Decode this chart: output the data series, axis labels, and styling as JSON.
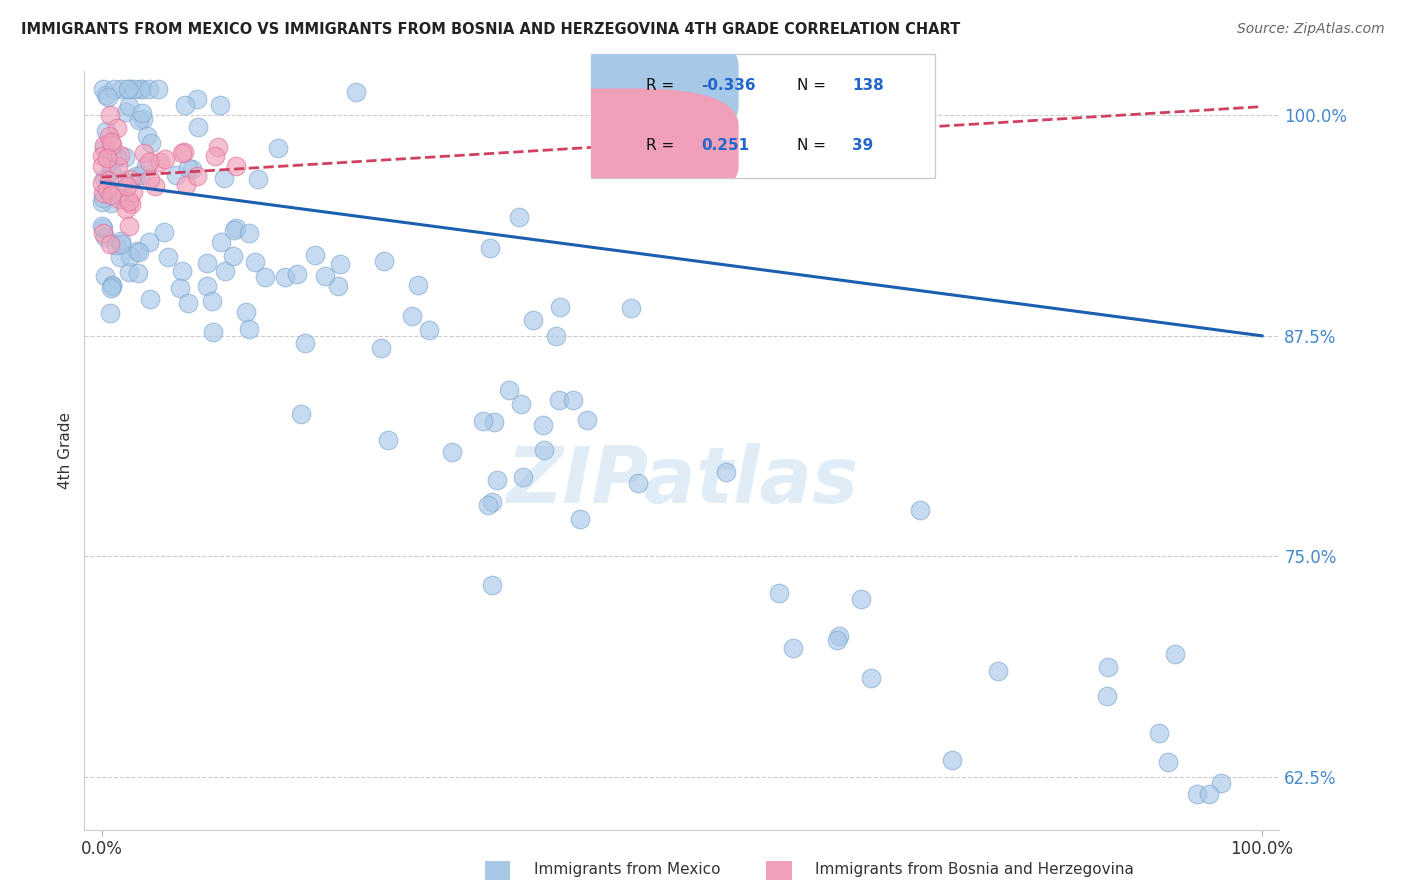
{
  "title": "IMMIGRANTS FROM MEXICO VS IMMIGRANTS FROM BOSNIA AND HERZEGOVINA 4TH GRADE CORRELATION CHART",
  "source": "Source: ZipAtlas.com",
  "ylabel": "4th Grade",
  "xlim": [
    0.0,
    1.0
  ],
  "ylim": [
    0.595,
    1.025
  ],
  "yticks": [
    0.625,
    0.75,
    0.875,
    1.0
  ],
  "ytick_labels": [
    "62.5%",
    "75.0%",
    "87.5%",
    "100.0%"
  ],
  "blue_R": -0.336,
  "blue_N": 138,
  "pink_R": 0.251,
  "pink_N": 39,
  "blue_color": "#a8c8e8",
  "pink_color": "#f0a0b8",
  "blue_edge_color": "#80a8d0",
  "pink_edge_color": "#e070a0",
  "blue_line_color": "#1a5fb0",
  "pink_line_color": "#d04060",
  "watermark": "ZIPatlas",
  "legend_blue_label": "Immigrants from Mexico",
  "legend_pink_label": "Immigrants from Bosnia and Herzegovina",
  "blue_line_x0": 0.0,
  "blue_line_y0": 0.962,
  "blue_line_x1": 1.0,
  "blue_line_y1": 0.875,
  "pink_line_x0": 0.0,
  "pink_line_y0": 0.965,
  "pink_line_x1": 1.0,
  "pink_line_y1": 1.005
}
